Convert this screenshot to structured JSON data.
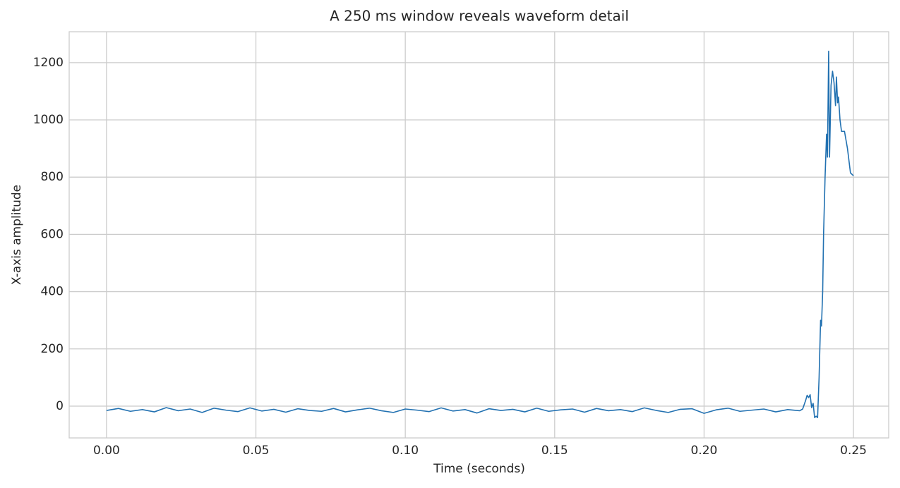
{
  "chart_data": {
    "type": "line",
    "title": "A 250 ms window reveals waveform detail",
    "x_label": "Time (seconds)",
    "y_label": "X-axis amplitude",
    "x": [
      0,
      0.004,
      0.008,
      0.012,
      0.016,
      0.02,
      0.024,
      0.028,
      0.032,
      0.036,
      0.04,
      0.044,
      0.048,
      0.052,
      0.056,
      0.06,
      0.064,
      0.068,
      0.072,
      0.076,
      0.08,
      0.084,
      0.088,
      0.092,
      0.096,
      0.1,
      0.104,
      0.108,
      0.112,
      0.116,
      0.12,
      0.124,
      0.128,
      0.132,
      0.136,
      0.14,
      0.144,
      0.148,
      0.152,
      0.156,
      0.16,
      0.164,
      0.168,
      0.172,
      0.176,
      0.18,
      0.184,
      0.188,
      0.192,
      0.196,
      0.2,
      0.204,
      0.208,
      0.212,
      0.216,
      0.22,
      0.224,
      0.228,
      0.232,
      0.233,
      0.234,
      0.2345,
      0.235,
      0.2355,
      0.236,
      0.2365,
      0.237,
      0.2375,
      0.238,
      0.2385,
      0.239,
      0.2393,
      0.2397,
      0.24,
      0.2405,
      0.241,
      0.2413,
      0.2417,
      0.242,
      0.2425,
      0.243,
      0.2435,
      0.244,
      0.2443,
      0.2447,
      0.245,
      0.2455,
      0.246,
      0.247,
      0.248,
      0.249,
      0.25
    ],
    "series": [
      {
        "color": "#2271b1",
        "values": [
          -15,
          -8,
          -18,
          -12,
          -20,
          -5,
          -16,
          -10,
          -22,
          -7,
          -14,
          -19,
          -6,
          -17,
          -11,
          -21,
          -9,
          -15,
          -18,
          -8,
          -20,
          -13,
          -7,
          -16,
          -22,
          -10,
          -14,
          -19,
          -6,
          -17,
          -12,
          -24,
          -9,
          -15,
          -11,
          -20,
          -7,
          -18,
          -13,
          -10,
          -21,
          -8,
          -16,
          -12,
          -19,
          -6,
          -15,
          -22,
          -11,
          -9,
          -25,
          -13,
          -7,
          -18,
          -14,
          -10,
          -20,
          -12,
          -16,
          -10,
          20,
          38,
          30,
          40,
          -5,
          10,
          -40,
          -35,
          -40,
          100,
          300,
          280,
          400,
          600,
          800,
          950,
          870,
          1240,
          870,
          1120,
          1170,
          1130,
          1050,
          1150,
          1060,
          1080,
          1000,
          960,
          960,
          900,
          815,
          805
        ]
      }
    ],
    "xlim": [
      -0.0125,
      0.2618
    ],
    "ylim": [
      -111,
      1308
    ],
    "xticks": [
      {
        "value": 0,
        "label": "0.00"
      },
      {
        "value": 0.05,
        "label": "0.05"
      },
      {
        "value": 0.1,
        "label": "0.10"
      },
      {
        "value": 0.15,
        "label": "0.15"
      },
      {
        "value": 0.2,
        "label": "0.20"
      },
      {
        "value": 0.25,
        "label": "0.25"
      }
    ],
    "yticks": [
      0,
      200,
      400,
      600,
      800,
      1000,
      1200
    ],
    "grid": true
  }
}
